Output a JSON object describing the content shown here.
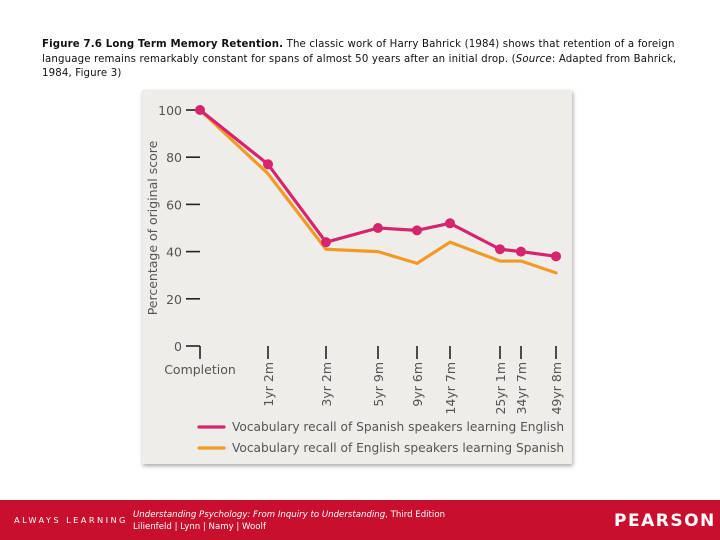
{
  "caption": {
    "lead": "Figure 7.6  Long Term Memory Retention.",
    "text_before_source": " The classic work of Harry Bahrick (1984) shows that retention of a foreign language remains remarkably constant for spans of almost 50 years after an initial drop. (",
    "source_label": "Source",
    "text_after_source": ": Adapted from Bahrick, 1984, Figure 3)"
  },
  "footer": {
    "always_learning": "ALWAYS LEARNING",
    "book_title": "Understanding Psychology: From Inquiry to Understanding",
    "edition": ", Third Edition",
    "authors": "Lilienfeld | Lynn | Namy | Woolf",
    "brand": "PEARSON"
  },
  "chart_data": {
    "type": "line",
    "title": "",
    "xlabel": "",
    "ylabel": "Percentage of original score",
    "ylim": [
      0,
      100
    ],
    "yticks": [
      0,
      20,
      40,
      60,
      80,
      100
    ],
    "categories": [
      "Completion",
      "1yr 2m",
      "3yr 2m",
      "5yr 9m",
      "9yr 6m",
      "14yr 7m",
      "25yr 1m",
      "34yr 7m",
      "49yr 8m"
    ],
    "x_years": [
      0,
      1.17,
      3.17,
      5.75,
      9.5,
      14.58,
      25.08,
      34.58,
      49.67
    ],
    "grid": false,
    "legend_position": "bottom",
    "series": [
      {
        "name": "Vocabulary recall of Spanish speakers learning English",
        "color": "#d6246e",
        "markers": true,
        "values": [
          100,
          77,
          44,
          50,
          49,
          52,
          41,
          40,
          38
        ]
      },
      {
        "name": "Vocabulary recall of English speakers learning Spanish",
        "color": "#f39a26",
        "markers": false,
        "values": [
          100,
          73,
          41,
          40,
          35,
          44,
          36,
          36,
          31
        ]
      }
    ]
  }
}
